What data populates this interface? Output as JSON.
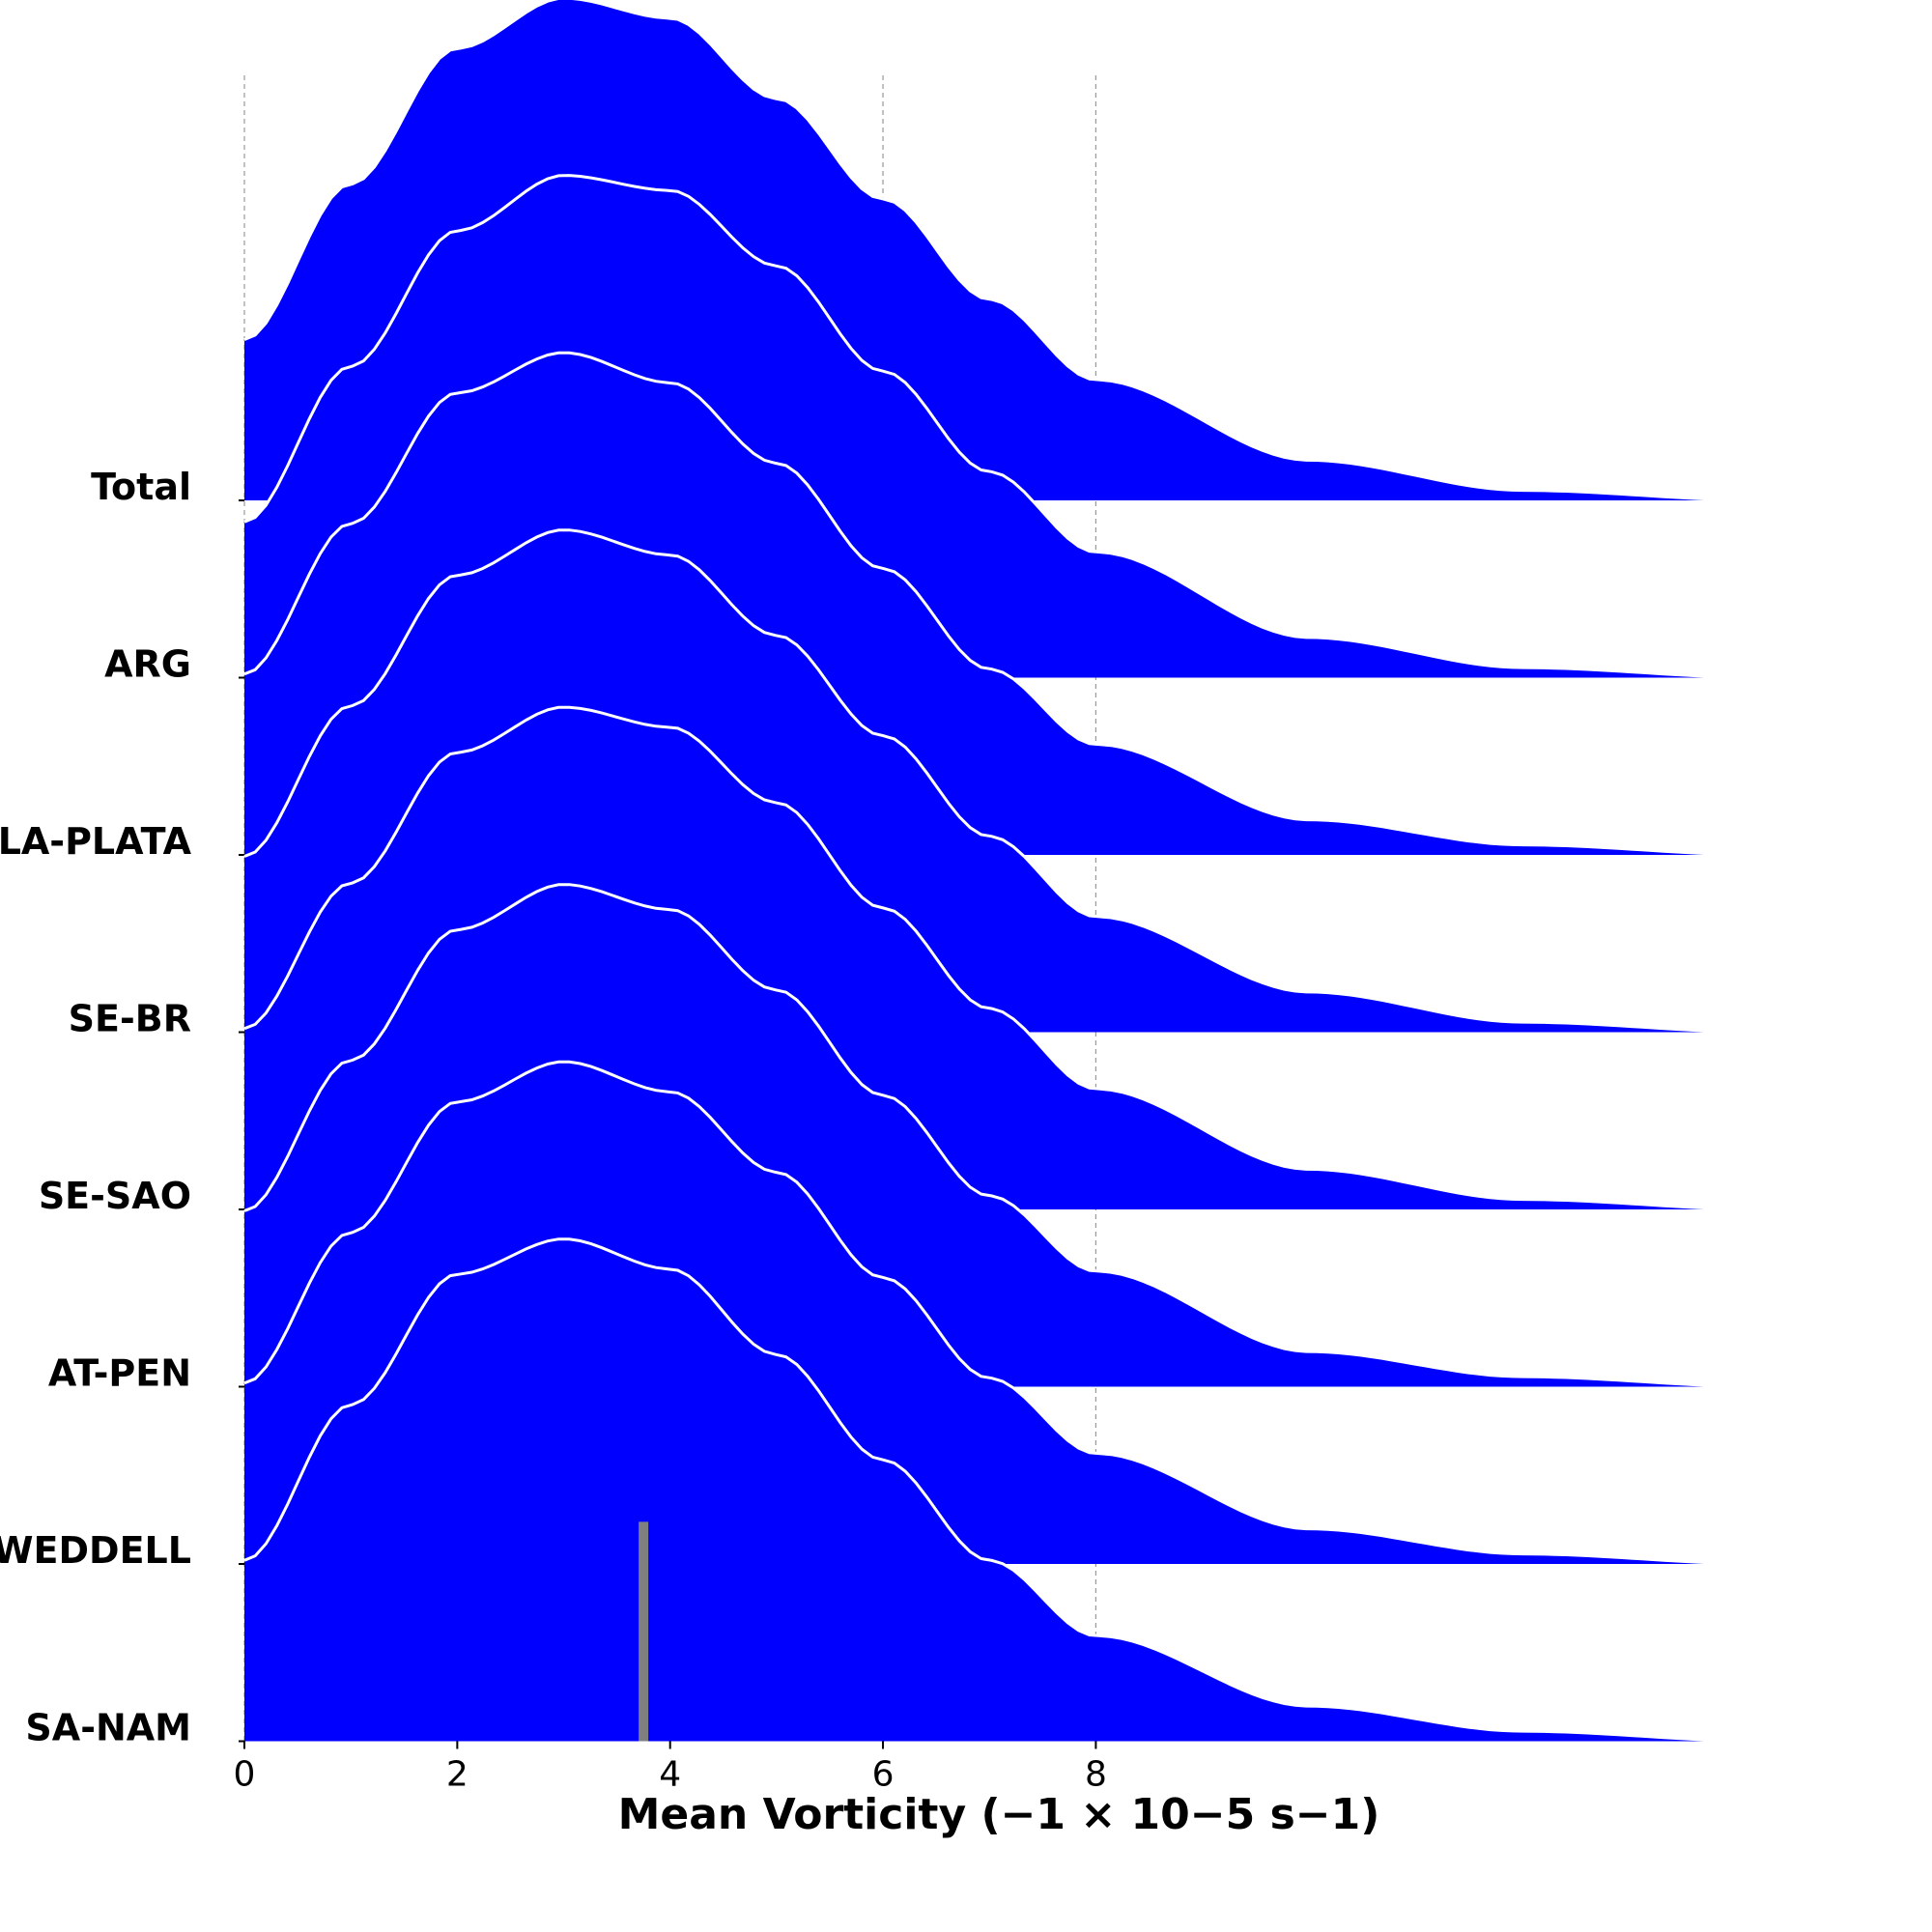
{
  "chart_data": {
    "type": "ridgeline",
    "xlabel": "Mean Vorticity (−1 × 10−5 s−1)",
    "xlim": [
      0,
      14.25
    ],
    "xticks": [
      0,
      2,
      4,
      6,
      8
    ],
    "xtick_labels": [
      "0",
      "2",
      "4",
      "6",
      "8"
    ],
    "grid": "vertical dashed",
    "fill_color": "#0000ff",
    "outline_color": "#ffffff",
    "marker_color": "#808080",
    "categories": [
      "Total",
      "ARG",
      "LA-PLATA",
      "SE-BR",
      "SE-SAO",
      "AT-PEN",
      "WEDDELL",
      "SA-NAM"
    ],
    "series": [
      {
        "name": "Total",
        "peak_x": 3.4,
        "density_at_x": [
          [
            0,
            0.32
          ],
          [
            1,
            0.63
          ],
          [
            2,
            0.9
          ],
          [
            3,
            1.0
          ],
          [
            4,
            0.96
          ],
          [
            5,
            0.8
          ],
          [
            6,
            0.6
          ],
          [
            7,
            0.4
          ],
          [
            8,
            0.24
          ],
          [
            10,
            0.08
          ],
          [
            12,
            0.02
          ],
          [
            14.25,
            0.0
          ]
        ]
      },
      {
        "name": "ARG",
        "peak_x": 3.5,
        "density_at_x": [
          [
            0,
            0.31
          ],
          [
            1,
            0.62
          ],
          [
            2,
            0.89
          ],
          [
            3,
            1.0
          ],
          [
            4,
            0.97
          ],
          [
            5,
            0.82
          ],
          [
            6,
            0.61
          ],
          [
            7,
            0.41
          ],
          [
            8,
            0.25
          ],
          [
            10,
            0.08
          ],
          [
            12,
            0.02
          ],
          [
            14.25,
            0.0
          ]
        ]
      },
      {
        "name": "LA-PLATA",
        "peak_x": 3.3,
        "density_at_x": [
          [
            0,
            0.36
          ],
          [
            1,
            0.66
          ],
          [
            2,
            0.92
          ],
          [
            3,
            1.0
          ],
          [
            4,
            0.94
          ],
          [
            5,
            0.78
          ],
          [
            6,
            0.57
          ],
          [
            7,
            0.37
          ],
          [
            8,
            0.22
          ],
          [
            10,
            0.07
          ],
          [
            12,
            0.02
          ],
          [
            14.25,
            0.0
          ]
        ]
      },
      {
        "name": "SE-BR",
        "peak_x": 3.4,
        "density_at_x": [
          [
            0,
            0.35
          ],
          [
            1,
            0.65
          ],
          [
            2,
            0.91
          ],
          [
            3,
            1.0
          ],
          [
            4,
            0.95
          ],
          [
            5,
            0.79
          ],
          [
            6,
            0.59
          ],
          [
            7,
            0.39
          ],
          [
            8,
            0.23
          ],
          [
            10,
            0.08
          ],
          [
            12,
            0.02
          ],
          [
            14.25,
            0.0
          ]
        ]
      },
      {
        "name": "SE-SAO",
        "peak_x": 3.45,
        "density_at_x": [
          [
            0,
            0.36
          ],
          [
            1,
            0.65
          ],
          [
            2,
            0.91
          ],
          [
            3,
            1.0
          ],
          [
            4,
            0.96
          ],
          [
            5,
            0.81
          ],
          [
            6,
            0.6
          ],
          [
            7,
            0.4
          ],
          [
            8,
            0.24
          ],
          [
            10,
            0.08
          ],
          [
            12,
            0.02
          ],
          [
            14.25,
            0.0
          ]
        ]
      },
      {
        "name": "AT-PEN",
        "peak_x": 3.35,
        "density_at_x": [
          [
            0,
            0.35
          ],
          [
            1,
            0.65
          ],
          [
            2,
            0.91
          ],
          [
            3,
            1.0
          ],
          [
            4,
            0.95
          ],
          [
            5,
            0.79
          ],
          [
            6,
            0.58
          ],
          [
            7,
            0.38
          ],
          [
            8,
            0.23
          ],
          [
            10,
            0.07
          ],
          [
            12,
            0.02
          ],
          [
            14.25,
            0.0
          ]
        ]
      },
      {
        "name": "WEDDELL",
        "peak_x": 3.3,
        "density_at_x": [
          [
            0,
            0.36
          ],
          [
            1,
            0.66
          ],
          [
            2,
            0.92
          ],
          [
            3,
            1.0
          ],
          [
            4,
            0.94
          ],
          [
            5,
            0.78
          ],
          [
            6,
            0.57
          ],
          [
            7,
            0.37
          ],
          [
            8,
            0.22
          ],
          [
            10,
            0.07
          ],
          [
            12,
            0.02
          ],
          [
            14.25,
            0.0
          ]
        ]
      },
      {
        "name": "SA-NAM",
        "peak_x": 3.25,
        "density_at_x": [
          [
            0,
            0.36
          ],
          [
            1,
            0.67
          ],
          [
            2,
            0.93
          ],
          [
            3,
            1.0
          ],
          [
            4,
            0.94
          ],
          [
            5,
            0.77
          ],
          [
            6,
            0.56
          ],
          [
            7,
            0.36
          ],
          [
            8,
            0.21
          ],
          [
            10,
            0.07
          ],
          [
            12,
            0.02
          ],
          [
            14.25,
            0.0
          ]
        ]
      }
    ],
    "marker": {
      "category": "SA-NAM",
      "x": 3.75,
      "height_fraction": 0.78
    }
  }
}
